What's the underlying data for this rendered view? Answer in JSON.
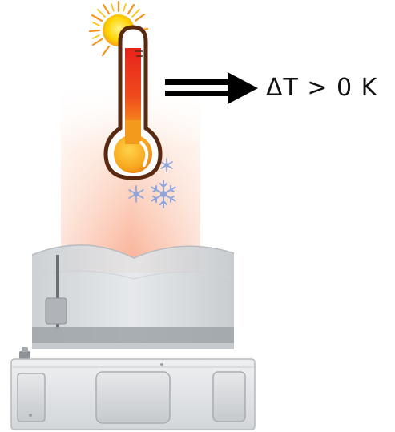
{
  "annotation": {
    "text": "ΔT > 0 K"
  },
  "icons": {
    "sun": "sun-icon",
    "thermometer": "thermometer-icon",
    "snowflakes": "snowflake-icon",
    "arrow": "double-arrow-right-icon"
  },
  "colors": {
    "heat_glow": "#f9a98c",
    "thermo_red": "#e8231c",
    "thermo_orange": "#f7a51c",
    "thermo_outline": "#5a2a10",
    "sun_orange": "#f7941d",
    "sun_yellow": "#ffd400",
    "snowflake": "#8fa6dc",
    "device_body": "#d9dcdf",
    "device_dark": "#9ea3a8",
    "arrow": "#000000"
  }
}
